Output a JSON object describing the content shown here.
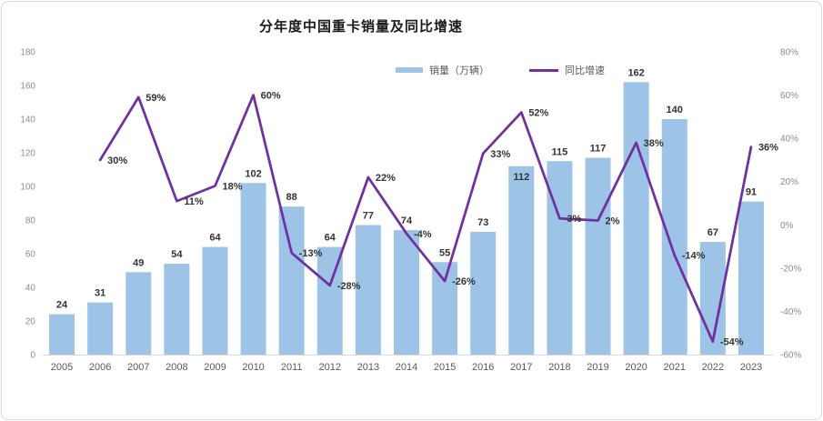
{
  "title": "分年度中国重卡销量及同比增速",
  "legend": {
    "sales_label": "销量（万辆）",
    "growth_label": "同比增速"
  },
  "colors": {
    "bar": "#9DC3E6",
    "line": "#7030A0",
    "axis_text": "#8C8C8C",
    "year_text": "#595959",
    "data_label": "#333333",
    "axis_line": "#D9D9D9",
    "title_text": "#1A1A1A"
  },
  "chart_data": {
    "type": "bar+line combo",
    "title": "分年度中国重卡销量及同比增速",
    "categories": [
      "2005",
      "2006",
      "2007",
      "2008",
      "2009",
      "2010",
      "2011",
      "2012",
      "2013",
      "2014",
      "2015",
      "2016",
      "2017",
      "2018",
      "2019",
      "2020",
      "2021",
      "2022",
      "2023"
    ],
    "series": [
      {
        "name": "销量（万辆）",
        "type": "bar",
        "axis": "left",
        "color": "#9DC3E6",
        "values": [
          24,
          31,
          49,
          54,
          64,
          102,
          88,
          64,
          77,
          74,
          55,
          73,
          112,
          115,
          117,
          162,
          140,
          67,
          91
        ]
      },
      {
        "name": "同比增速",
        "type": "line",
        "axis": "right",
        "color": "#7030A0",
        "unit": "%",
        "values": [
          null,
          30,
          59,
          11,
          18,
          60,
          -13,
          -28,
          22,
          -4,
          -26,
          33,
          52,
          3,
          2,
          38,
          -14,
          -54,
          36
        ]
      }
    ],
    "left_axis": {
      "min": 0,
      "max": 180,
      "step": 20,
      "tick_labels": [
        "180",
        "160",
        "140",
        "120",
        "100",
        "80",
        "60",
        "40",
        "20",
        "0"
      ]
    },
    "right_axis": {
      "min": -60,
      "max": 80,
      "step": 20,
      "tick_labels": [
        "80%",
        "60%",
        "40%",
        "20%",
        "0%",
        "-20%",
        "-40%",
        "-60%"
      ]
    },
    "grid": false,
    "legend_position": "top"
  }
}
